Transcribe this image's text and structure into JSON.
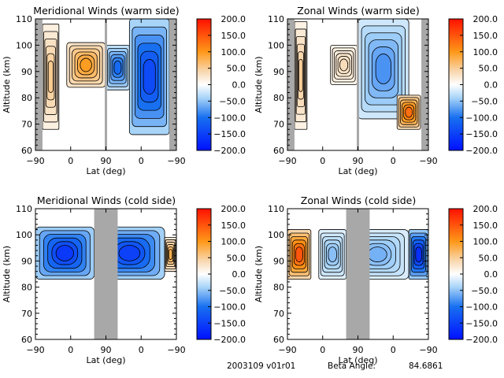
{
  "chart_data": [
    {
      "type": "heatmap",
      "title": "Meridional Winds (warm side)",
      "xlabel": "Lat (deg)",
      "ylabel": "Altitude (km)",
      "x_ticks": [
        "-90",
        "0",
        "90",
        "0",
        "-90"
      ],
      "y_ticks": [
        "60",
        "70",
        "80",
        "90",
        "100",
        "110"
      ],
      "ylim": [
        60,
        110
      ],
      "colorbar": {
        "ticks": [
          "200.0",
          "150.0",
          "100.0",
          "50.0",
          "0.0",
          "-50.0",
          "-100.0",
          "-150.0",
          "-200.0"
        ],
        "range": [
          -200,
          200
        ]
      },
      "masked_lat_ranges": [
        [
          -90,
          -72
        ],
        [
          88,
          92
        ],
        [
          -72,
          -90
        ]
      ],
      "features": [
        {
          "x_range": [
            -72,
            -30
          ],
          "alt_range": [
            68,
            108
          ],
          "value": 60
        },
        {
          "x_range": [
            -10,
            88
          ],
          "alt_range": [
            84,
            101
          ],
          "value": 110
        },
        {
          "x_range": [
            90,
            30
          ],
          "alt_range": [
            83,
            100
          ],
          "value": -120
        },
        {
          "x_range": [
            30,
            -72
          ],
          "alt_range": [
            66,
            110
          ],
          "value": -160
        }
      ]
    },
    {
      "type": "heatmap",
      "title": "Zonal Winds (warm side)",
      "xlabel": "Lat (deg)",
      "ylabel": "Altitude (km)",
      "x_ticks": [
        "-90",
        "0",
        "90",
        "0",
        "-90"
      ],
      "y_ticks": [
        "60",
        "70",
        "80",
        "90",
        "100",
        "110"
      ],
      "ylim": [
        60,
        110
      ],
      "colorbar": {
        "ticks": [
          "200.0",
          "150.0",
          "100.0",
          "50.0",
          "0.0",
          "-50.0",
          "-100.0",
          "-150.0",
          "-200.0"
        ],
        "range": [
          -200,
          200
        ]
      },
      "masked_lat_ranges": [
        [
          -90,
          -72
        ],
        [
          88,
          92
        ],
        [
          -72,
          -90
        ]
      ],
      "features": [
        {
          "x_range": [
            -72,
            -40
          ],
          "alt_range": [
            68,
            109
          ],
          "value": 55
        },
        {
          "x_range": [
            20,
            88
          ],
          "alt_range": [
            85,
            100
          ],
          "value": 40
        },
        {
          "x_range": [
            90,
            -40
          ],
          "alt_range": [
            72,
            110
          ],
          "value": -90
        },
        {
          "x_range": [
            -10,
            -70
          ],
          "alt_range": [
            68,
            81
          ],
          "value": 150
        }
      ]
    },
    {
      "type": "heatmap",
      "title": "Meridional Winds (cold side)",
      "xlabel": "Lat (deg)",
      "ylabel": "Altitude (km)",
      "x_ticks": [
        "-90",
        "0",
        "90",
        "0",
        "-90"
      ],
      "y_ticks": [
        "60",
        "70",
        "80",
        "90",
        "100",
        "110"
      ],
      "ylim": [
        60,
        110
      ],
      "colorbar": {
        "ticks": [
          "200.0",
          "150.0",
          "100.0",
          "50.0",
          "0.0",
          "-50.0",
          "-100.0",
          "-150.0",
          "-200.0"
        ],
        "range": [
          -200,
          200
        ]
      },
      "masked_lat_ranges": [
        [
          60,
          120
        ]
      ],
      "features": [
        {
          "x_range": [
            -90,
            60
          ],
          "alt_range": [
            83,
            103
          ],
          "value": -180
        },
        {
          "x_range": [
            120,
            -60
          ],
          "alt_range": [
            83,
            103
          ],
          "value": -170
        },
        {
          "x_range": [
            -60,
            -90
          ],
          "alt_range": [
            86,
            99
          ],
          "value": 90
        }
      ]
    },
    {
      "type": "heatmap",
      "title": "Zonal Winds (cold side)",
      "xlabel": "Lat (deg)",
      "ylabel": "Altitude (km)",
      "x_ticks": [
        "-90",
        "0",
        "90",
        "0",
        "-90"
      ],
      "y_ticks": [
        "60",
        "70",
        "80",
        "90",
        "100",
        "110"
      ],
      "ylim": [
        60,
        110
      ],
      "colorbar": {
        "ticks": [
          "200.0",
          "150.0",
          "100.0",
          "50.0",
          "0.0",
          "-50.0",
          "-100.0",
          "-150.0",
          "-200.0"
        ],
        "range": [
          -200,
          200
        ]
      },
      "masked_lat_ranges": [
        [
          60,
          120
        ]
      ],
      "features": [
        {
          "x_range": [
            -90,
            -30
          ],
          "alt_range": [
            83,
            102
          ],
          "value": 170
        },
        {
          "x_range": [
            -10,
            60
          ],
          "alt_range": [
            83,
            102
          ],
          "value": -60
        },
        {
          "x_range": [
            120,
            -40
          ],
          "alt_range": [
            83,
            102
          ],
          "value": -70
        },
        {
          "x_range": [
            -40,
            -90
          ],
          "alt_range": [
            83,
            102
          ],
          "value": -190
        }
      ]
    }
  ],
  "footer": {
    "date_version": "2003109 v01r01",
    "beta_label": "Beta Angle:",
    "beta_value": "84.6861"
  }
}
